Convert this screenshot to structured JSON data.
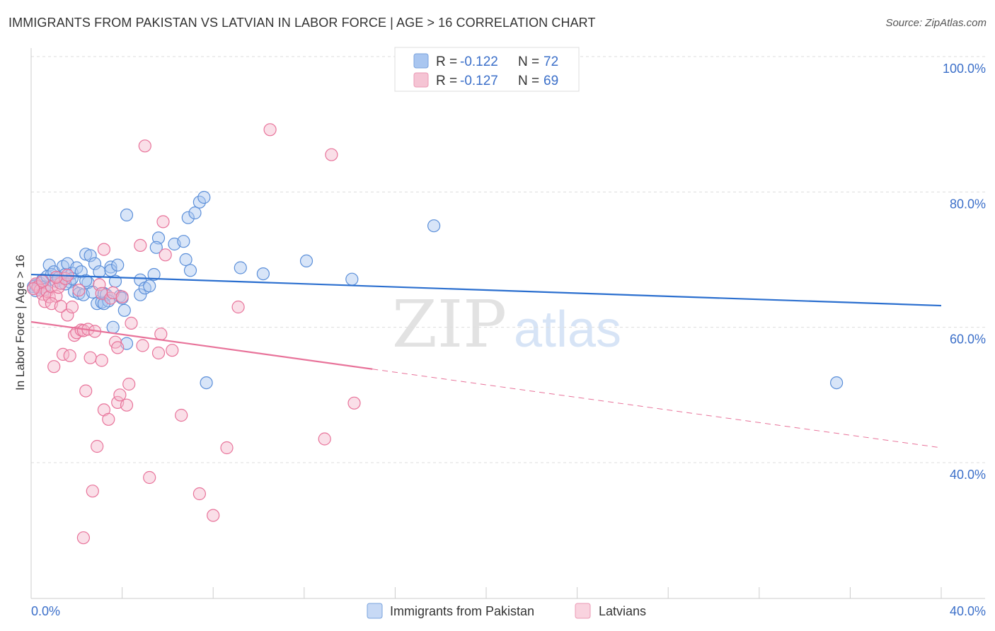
{
  "header": {
    "title": "IMMIGRANTS FROM PAKISTAN VS LATVIAN IN LABOR FORCE | AGE > 16 CORRELATION CHART",
    "source": "Source: ZipAtlas.com"
  },
  "watermark": {
    "zip": "ZIP",
    "atlas": "atlas"
  },
  "legend": {
    "rows": [
      {
        "r_label": "R = ",
        "r_value": "-0.122",
        "n_label": "N = ",
        "n_value": "72",
        "color": "#a9c6f0"
      },
      {
        "r_label": "R = ",
        "r_value": "-0.127",
        "n_label": "N = ",
        "n_value": "69",
        "color": "#f5b8cc"
      }
    ]
  },
  "bottom_legend": [
    {
      "label": "Immigrants from Pakistan",
      "color": "#a9c6f0"
    },
    {
      "label": "Latvians",
      "color": "#f5b8cc"
    }
  ],
  "chart_data": {
    "type": "scatter",
    "title": "IMMIGRANTS FROM PAKISTAN VS LATVIAN IN LABOR FORCE | AGE > 16 CORRELATION CHART",
    "xlabel": "",
    "ylabel": "In Labor Force | Age > 16",
    "xlim": [
      0,
      40
    ],
    "ylim": [
      20,
      103
    ],
    "x_tick_labels": [
      "0.0%",
      "40.0%"
    ],
    "y_ticks": [
      40,
      60,
      80,
      100
    ],
    "y_tick_labels": [
      "40.0%",
      "60.0%",
      "80.0%",
      "100.0%"
    ],
    "grid": true,
    "legend_position": "top-center",
    "series": [
      {
        "name": "Immigrants from Pakistan",
        "color": "#5b8fd9",
        "fill": "#a9c6f0",
        "trend": {
          "x": [
            0,
            40
          ],
          "y": [
            67.8,
            63.2
          ],
          "dash_from": null
        },
        "points": [
          [
            0.2,
            66.2
          ],
          [
            0.3,
            65.8
          ],
          [
            0.4,
            66.5
          ],
          [
            0.5,
            67.0
          ],
          [
            0.6,
            66.0
          ],
          [
            0.7,
            67.5
          ],
          [
            0.8,
            69.2
          ],
          [
            0.9,
            67.8
          ],
          [
            1.0,
            68.2
          ],
          [
            1.1,
            66.8
          ],
          [
            1.2,
            67.3
          ],
          [
            1.3,
            66.5
          ],
          [
            1.4,
            69.0
          ],
          [
            1.5,
            67.8
          ],
          [
            1.6,
            69.4
          ],
          [
            1.7,
            66.7
          ],
          [
            1.8,
            68.0
          ],
          [
            1.9,
            65.3
          ],
          [
            2.0,
            68.8
          ],
          [
            2.1,
            65.0
          ],
          [
            2.2,
            68.2
          ],
          [
            2.3,
            64.8
          ],
          [
            2.5,
            66.6
          ],
          [
            2.4,
            70.8
          ],
          [
            2.6,
            70.6
          ],
          [
            2.7,
            65.2
          ],
          [
            2.8,
            69.4
          ],
          [
            2.9,
            63.5
          ],
          [
            3.0,
            68.2
          ],
          [
            3.1,
            63.7
          ],
          [
            3.2,
            65.0
          ],
          [
            3.3,
            64.8
          ],
          [
            3.4,
            63.9
          ],
          [
            3.5,
            68.9
          ],
          [
            3.5,
            68.4
          ],
          [
            3.6,
            60.0
          ],
          [
            3.7,
            66.8
          ],
          [
            3.8,
            69.2
          ],
          [
            3.9,
            64.6
          ],
          [
            4.0,
            64.3
          ],
          [
            4.1,
            62.5
          ],
          [
            4.2,
            57.6
          ],
          [
            4.2,
            76.6
          ],
          [
            4.8,
            64.8
          ],
          [
            4.8,
            67.0
          ],
          [
            5.0,
            65.8
          ],
          [
            5.2,
            66.1
          ],
          [
            5.4,
            67.8
          ],
          [
            5.6,
            73.2
          ],
          [
            5.5,
            71.8
          ],
          [
            6.3,
            72.3
          ],
          [
            6.7,
            72.7
          ],
          [
            6.8,
            70.0
          ],
          [
            6.9,
            76.2
          ],
          [
            7.0,
            68.4
          ],
          [
            7.2,
            76.9
          ],
          [
            7.4,
            78.5
          ],
          [
            7.6,
            79.2
          ],
          [
            7.7,
            51.8
          ],
          [
            9.2,
            68.8
          ],
          [
            10.2,
            67.9
          ],
          [
            12.1,
            69.8
          ],
          [
            14.1,
            67.1
          ],
          [
            17.7,
            75.0
          ],
          [
            35.4,
            51.8
          ],
          [
            0.1,
            66.0
          ],
          [
            0.2,
            65.4
          ],
          [
            0.6,
            65.6
          ],
          [
            1.5,
            66.4
          ],
          [
            1.8,
            67.2
          ],
          [
            2.4,
            66.9
          ],
          [
            3.2,
            63.5
          ]
        ]
      },
      {
        "name": "Latvians",
        "color": "#e8739a",
        "fill": "#f5b8cc",
        "trend": {
          "x": [
            0,
            40
          ],
          "y": [
            60.8,
            42.2
          ],
          "dash_from": 15
        },
        "points": [
          [
            0.2,
            66.4
          ],
          [
            0.3,
            66.0
          ],
          [
            0.4,
            65.5
          ],
          [
            0.5,
            64.9
          ],
          [
            0.6,
            63.8
          ],
          [
            0.7,
            65.3
          ],
          [
            0.8,
            64.5
          ],
          [
            0.9,
            66.0
          ],
          [
            1.0,
            54.2
          ],
          [
            1.1,
            64.6
          ],
          [
            1.2,
            65.9
          ],
          [
            1.3,
            66.5
          ],
          [
            1.4,
            56.0
          ],
          [
            1.5,
            67.2
          ],
          [
            1.6,
            61.8
          ],
          [
            1.7,
            55.8
          ],
          [
            1.8,
            63.0
          ],
          [
            1.9,
            58.8
          ],
          [
            2.0,
            59.2
          ],
          [
            2.1,
            65.5
          ],
          [
            2.2,
            59.6
          ],
          [
            2.3,
            59.5
          ],
          [
            2.4,
            50.6
          ],
          [
            2.5,
            59.7
          ],
          [
            2.6,
            55.5
          ],
          [
            2.7,
            35.8
          ],
          [
            2.8,
            59.4
          ],
          [
            2.9,
            42.4
          ],
          [
            3.0,
            66.3
          ],
          [
            3.1,
            65.0
          ],
          [
            3.1,
            55.1
          ],
          [
            3.2,
            71.5
          ],
          [
            3.2,
            47.8
          ],
          [
            3.4,
            46.4
          ],
          [
            3.5,
            64.3
          ],
          [
            3.6,
            65.1
          ],
          [
            3.7,
            57.8
          ],
          [
            3.8,
            48.9
          ],
          [
            3.9,
            50.0
          ],
          [
            4.0,
            64.5
          ],
          [
            4.2,
            48.5
          ],
          [
            4.3,
            51.6
          ],
          [
            4.4,
            60.6
          ],
          [
            4.8,
            72.1
          ],
          [
            4.9,
            57.3
          ],
          [
            5.0,
            86.8
          ],
          [
            5.2,
            37.8
          ],
          [
            5.6,
            56.2
          ],
          [
            5.7,
            59.0
          ],
          [
            5.8,
            75.6
          ],
          [
            5.9,
            70.7
          ],
          [
            6.2,
            56.6
          ],
          [
            6.6,
            47.0
          ],
          [
            7.4,
            35.4
          ],
          [
            8.0,
            32.2
          ],
          [
            8.6,
            42.2
          ],
          [
            9.1,
            63.0
          ],
          [
            10.5,
            89.2
          ],
          [
            12.9,
            43.5
          ],
          [
            13.2,
            85.5
          ],
          [
            14.2,
            48.8
          ],
          [
            0.1,
            65.7
          ],
          [
            0.5,
            66.8
          ],
          [
            1.1,
            67.4
          ],
          [
            1.6,
            67.7
          ],
          [
            2.3,
            28.9
          ],
          [
            3.8,
            57.0
          ],
          [
            0.9,
            63.5
          ],
          [
            1.3,
            63.1
          ]
        ]
      }
    ]
  }
}
